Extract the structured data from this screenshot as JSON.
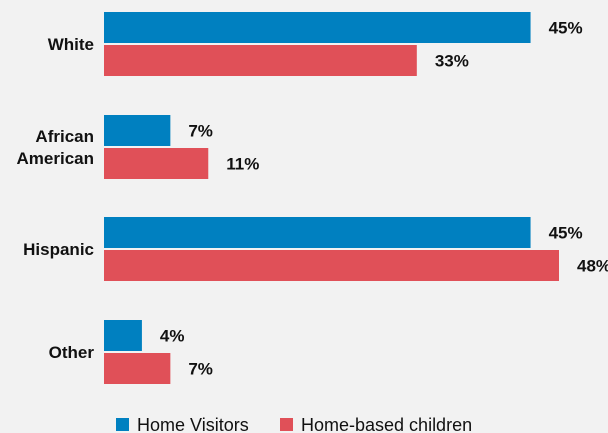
{
  "chart_data": {
    "type": "bar",
    "orientation": "horizontal",
    "categories": [
      [
        "White"
      ],
      [
        "African",
        "American"
      ],
      [
        "Hispanic"
      ],
      [
        "Other"
      ]
    ],
    "series": [
      {
        "name": "Home Visitors",
        "color": "#0080c0",
        "values": [
          45,
          7,
          45,
          4
        ],
        "labels": [
          "45%",
          "7%",
          "45%",
          "4%"
        ]
      },
      {
        "name": "Home-based children",
        "color": "#e05058",
        "values": [
          33,
          11,
          48,
          7
        ],
        "labels": [
          "33%",
          "11%",
          "48%",
          "7%"
        ]
      }
    ],
    "xlim": [
      0,
      48
    ],
    "grid": false,
    "legend_position": "bottom"
  }
}
